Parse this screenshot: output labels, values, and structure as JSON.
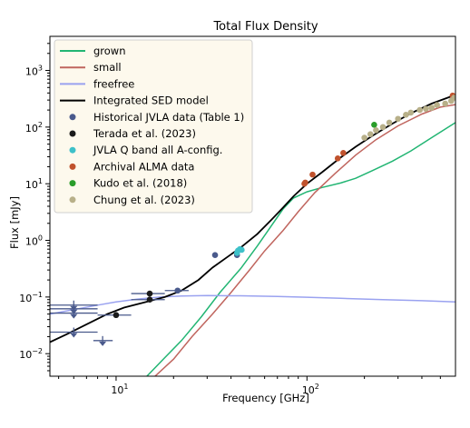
{
  "chart_data": {
    "type": "scatter",
    "title": "Total Flux Density",
    "xlabel": "Frequency [GHz]",
    "ylabel": "Flux [mJy]",
    "x_scale": "log",
    "y_scale": "log",
    "xlim": [
      4.5,
      600
    ],
    "ylim": [
      0.004,
      4000
    ],
    "x_ticks": [
      {
        "value": 10,
        "base": "10",
        "exp": "1"
      },
      {
        "value": 100,
        "base": "10",
        "exp": "2"
      }
    ],
    "y_ticks": [
      {
        "value": 0.01,
        "base": "10",
        "exp": "−2"
      },
      {
        "value": 0.1,
        "base": "10",
        "exp": "−1"
      },
      {
        "value": 1,
        "base": "10",
        "exp": "0"
      },
      {
        "value": 10,
        "base": "10",
        "exp": "1"
      },
      {
        "value": 100,
        "base": "10",
        "exp": "2"
      },
      {
        "value": 1000,
        "base": "10",
        "exp": "3"
      }
    ],
    "legend_position": "top-left",
    "lines": [
      {
        "name": "grown",
        "color": "#22b573",
        "points": [
          [
            14.5,
            0.004
          ],
          [
            18,
            0.0085
          ],
          [
            22,
            0.017
          ],
          [
            28,
            0.045
          ],
          [
            35,
            0.12
          ],
          [
            45,
            0.32
          ],
          [
            55,
            0.8
          ],
          [
            65,
            1.8
          ],
          [
            75,
            3.6
          ],
          [
            85,
            5.6
          ],
          [
            100,
            7.2
          ],
          [
            120,
            8.6
          ],
          [
            150,
            10.3
          ],
          [
            180,
            12.5
          ],
          [
            220,
            17
          ],
          [
            280,
            25
          ],
          [
            350,
            38
          ],
          [
            450,
            65
          ],
          [
            600,
            120
          ]
        ]
      },
      {
        "name": "small",
        "color": "#c0655e",
        "points": [
          [
            16,
            0.004
          ],
          [
            20,
            0.008
          ],
          [
            25,
            0.02
          ],
          [
            32,
            0.05
          ],
          [
            40,
            0.12
          ],
          [
            50,
            0.3
          ],
          [
            60,
            0.65
          ],
          [
            75,
            1.5
          ],
          [
            90,
            3.2
          ],
          [
            110,
            7
          ],
          [
            140,
            15
          ],
          [
            180,
            32
          ],
          [
            230,
            60
          ],
          [
            300,
            105
          ],
          [
            400,
            170
          ],
          [
            500,
            225
          ],
          [
            600,
            250
          ]
        ]
      },
      {
        "name": "freefree",
        "color": "#9aa2f0",
        "points": [
          [
            4.5,
            0.05
          ],
          [
            6,
            0.06
          ],
          [
            8,
            0.072
          ],
          [
            10,
            0.082
          ],
          [
            13,
            0.092
          ],
          [
            17,
            0.1
          ],
          [
            22,
            0.104
          ],
          [
            30,
            0.106
          ],
          [
            45,
            0.105
          ],
          [
            70,
            0.102
          ],
          [
            100,
            0.099
          ],
          [
            150,
            0.095
          ],
          [
            250,
            0.09
          ],
          [
            400,
            0.086
          ],
          [
            600,
            0.082
          ]
        ]
      },
      {
        "name": "Integrated SED model",
        "color": "#000000",
        "points": [
          [
            4.5,
            0.016
          ],
          [
            5.5,
            0.022
          ],
          [
            7,
            0.033
          ],
          [
            9,
            0.05
          ],
          [
            11,
            0.065
          ],
          [
            14,
            0.08
          ],
          [
            18,
            0.1
          ],
          [
            22,
            0.13
          ],
          [
            27,
            0.2
          ],
          [
            32,
            0.33
          ],
          [
            38,
            0.5
          ],
          [
            45,
            0.75
          ],
          [
            55,
            1.3
          ],
          [
            65,
            2.3
          ],
          [
            75,
            3.8
          ],
          [
            85,
            6
          ],
          [
            100,
            10
          ],
          [
            120,
            16
          ],
          [
            150,
            29
          ],
          [
            180,
            45
          ],
          [
            220,
            70
          ],
          [
            280,
            115
          ],
          [
            350,
            175
          ],
          [
            450,
            260
          ],
          [
            600,
            370
          ]
        ]
      }
    ],
    "series": [
      {
        "name": "Historical JVLA data (Table 1)",
        "color": "#4a5a8c",
        "marker": "circle",
        "points": [
          [
            21,
            0.13
          ],
          [
            33,
            0.55
          ],
          [
            43,
            0.55
          ]
        ]
      },
      {
        "name": "Terada et al. (2023)",
        "color": "#1a1a1a",
        "marker": "circle",
        "points": [
          [
            10,
            0.048
          ],
          [
            15,
            0.09
          ],
          [
            15,
            0.115
          ]
        ]
      },
      {
        "name": "JVLA Q band all A-config.",
        "color": "#3ec1c9",
        "marker": "circle",
        "points": [
          [
            43.5,
            0.66
          ],
          [
            44.5,
            0.7
          ],
          [
            45.5,
            0.68
          ],
          [
            43,
            0.6
          ]
        ]
      },
      {
        "name": "Archival ALMA data",
        "color": "#c0522d",
        "marker": "circle",
        "points": [
          [
            97,
            10
          ],
          [
            98,
            10.5
          ],
          [
            107,
            14.5
          ],
          [
            145,
            28
          ],
          [
            155,
            35
          ],
          [
            580,
            360
          ]
        ]
      },
      {
        "name": "Kudo et al. (2018)",
        "color": "#2a9d2a",
        "marker": "circle",
        "points": [
          [
            225,
            110
          ]
        ]
      },
      {
        "name": "Chung et al. (2023)",
        "color": "#b8b089",
        "marker": "circle",
        "points": [
          [
            200,
            65
          ],
          [
            215,
            75
          ],
          [
            230,
            88
          ],
          [
            250,
            100
          ],
          [
            270,
            120
          ],
          [
            300,
            140
          ],
          [
            330,
            165
          ],
          [
            350,
            180
          ],
          [
            390,
            200
          ],
          [
            420,
            210
          ],
          [
            450,
            220
          ],
          [
            480,
            245
          ],
          [
            530,
            260
          ],
          [
            570,
            290
          ],
          [
            590,
            330
          ]
        ]
      }
    ],
    "upper_limits": {
      "color": "#4a5a8c",
      "points": [
        [
          6,
          0.072,
          4.5,
          8
        ],
        [
          6,
          0.062,
          4.5,
          8
        ],
        [
          6,
          0.052,
          4.5,
          8
        ],
        [
          6,
          0.024,
          4.5,
          8
        ],
        [
          8.5,
          0.017,
          7.6,
          9.6
        ]
      ]
    },
    "errorbars": [
      {
        "x": 10,
        "y": 0.048,
        "xlo": 8,
        "xhi": 12,
        "color": "#4a5a8c"
      },
      {
        "x": 15,
        "y": 0.09,
        "xlo": 12,
        "xhi": 18,
        "color": "#4a5a8c"
      },
      {
        "x": 15,
        "y": 0.115,
        "xlo": 12,
        "xhi": 18,
        "color": "#4a5a8c"
      },
      {
        "x": 21,
        "y": 0.13,
        "xlo": 18,
        "xhi": 24,
        "color": "#4a5a8c"
      }
    ]
  }
}
